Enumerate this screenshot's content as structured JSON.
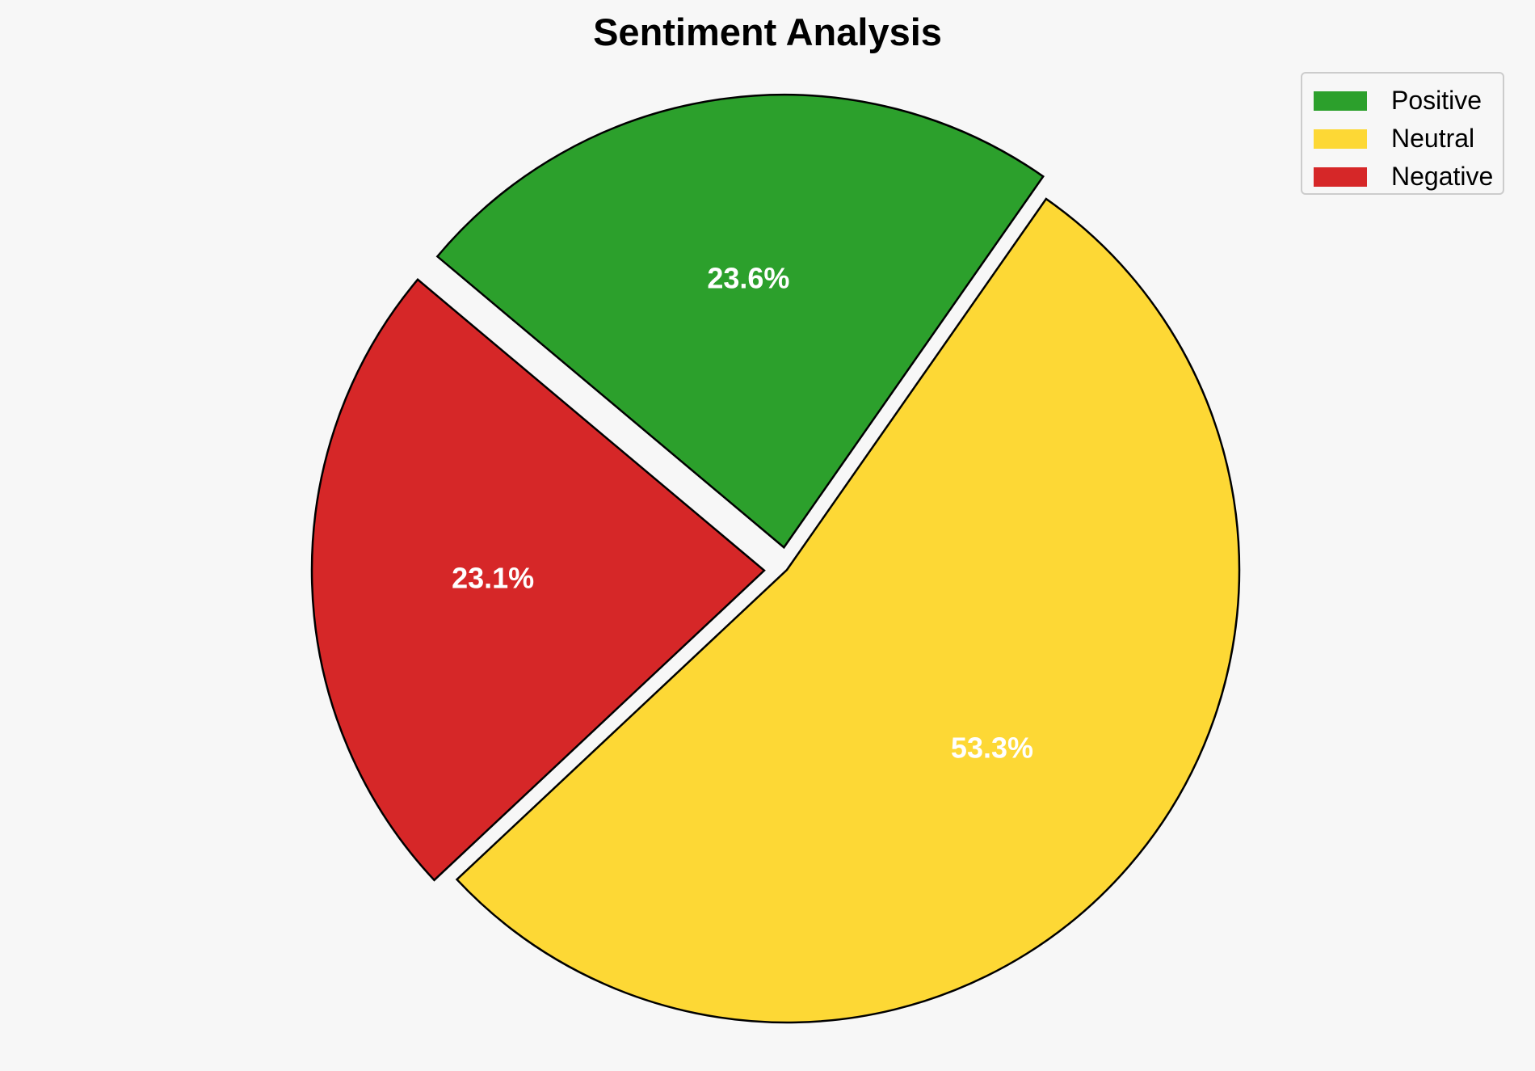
{
  "chart_data": {
    "type": "pie",
    "title": "Sentiment Analysis",
    "categories": [
      "Positive",
      "Neutral",
      "Negative"
    ],
    "values": [
      23.6,
      53.3,
      23.1
    ],
    "labels": [
      "23.6%",
      "53.3%",
      "23.1%"
    ],
    "colors": [
      "#2ca02c",
      "#fdd835",
      "#d62728"
    ],
    "exploded": [
      true,
      false,
      true
    ],
    "legend_position": "top-right",
    "label_color": "#ffffff",
    "edge_color": "#000000"
  }
}
